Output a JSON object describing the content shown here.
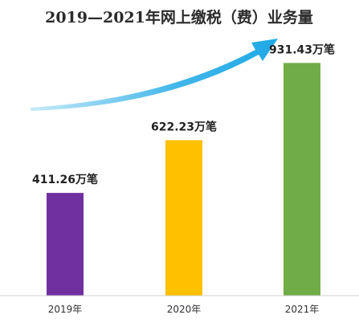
{
  "chart_data": {
    "type": "bar",
    "title": "2019—2021年网上缴税（费）业务量",
    "categories": [
      "2019年",
      "2020年",
      "2021年"
    ],
    "values": [
      411.26,
      622.23,
      931.43
    ],
    "data_labels": [
      "411.26万笔",
      "622.23万笔",
      "931.43万笔"
    ],
    "unit": "万笔",
    "ylim": [
      0,
      1000
    ],
    "grid": false,
    "legend": "none",
    "colors": [
      "#7030A0",
      "#FFC000",
      "#70AD47"
    ],
    "arrow_color": "#1FA9E6"
  }
}
